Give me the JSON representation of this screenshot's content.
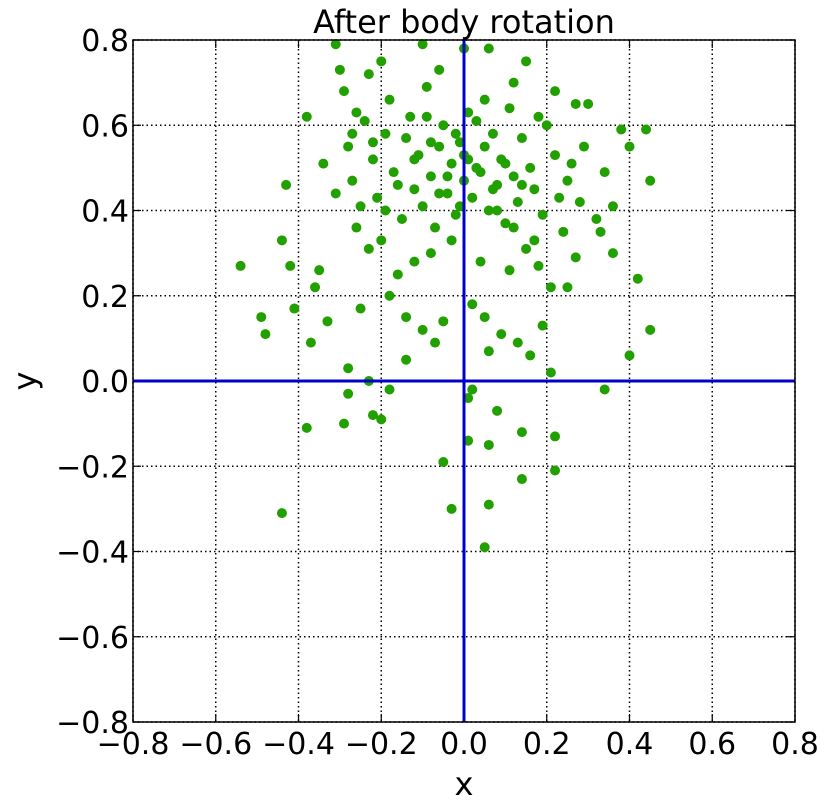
{
  "chart_data": {
    "type": "scatter",
    "title": "After body rotation",
    "xlabel": "x",
    "ylabel": "y",
    "xlim": [
      -0.8,
      0.8
    ],
    "ylim": [
      -0.8,
      0.8
    ],
    "xticks": [
      -0.8,
      -0.6,
      -0.4,
      -0.2,
      0.0,
      0.2,
      0.4,
      0.6,
      0.8
    ],
    "yticks": [
      -0.8,
      -0.6,
      -0.4,
      -0.2,
      0.0,
      0.2,
      0.4,
      0.6,
      0.8
    ],
    "xtick_labels": [
      "−0.8",
      "−0.6",
      "−0.4",
      "−0.2",
      "0.0",
      "0.2",
      "0.4",
      "0.6",
      "0.8"
    ],
    "ytick_labels": [
      "−0.8",
      "−0.6",
      "−0.4",
      "−0.2",
      "0.0",
      "0.2",
      "0.4",
      "0.6",
      "0.8"
    ],
    "grid": true,
    "grid_style": "dotted",
    "point_color": "#22a000",
    "axis_line_color": "#0000cc",
    "reference_lines": {
      "x": 0.0,
      "y": 0.0
    },
    "series": [
      {
        "points": [
          [
            -0.54,
            0.27
          ],
          [
            -0.49,
            0.15
          ],
          [
            -0.48,
            0.11
          ],
          [
            -0.43,
            0.46
          ],
          [
            -0.44,
            0.33
          ],
          [
            -0.42,
            0.27
          ],
          [
            -0.41,
            0.17
          ],
          [
            -0.38,
            0.62
          ],
          [
            -0.37,
            0.09
          ],
          [
            -0.36,
            0.22
          ],
          [
            -0.35,
            0.26
          ],
          [
            -0.33,
            0.14
          ],
          [
            -0.31,
            0.79
          ],
          [
            -0.3,
            0.73
          ],
          [
            -0.29,
            0.68
          ],
          [
            -0.28,
            0.55
          ],
          [
            -0.27,
            0.47
          ],
          [
            -0.26,
            0.36
          ],
          [
            -0.25,
            0.41
          ],
          [
            -0.24,
            0.61
          ],
          [
            -0.23,
            0.72
          ],
          [
            -0.22,
            0.52
          ],
          [
            -0.21,
            0.43
          ],
          [
            -0.2,
            0.33
          ],
          [
            -0.19,
            0.58
          ],
          [
            -0.18,
            0.66
          ],
          [
            -0.17,
            0.49
          ],
          [
            -0.16,
            0.25
          ],
          [
            -0.15,
            0.38
          ],
          [
            -0.14,
            0.57
          ],
          [
            -0.13,
            0.62
          ],
          [
            -0.12,
            0.45
          ],
          [
            -0.11,
            0.53
          ],
          [
            -0.1,
            0.41
          ],
          [
            -0.09,
            0.69
          ],
          [
            -0.08,
            0.48
          ],
          [
            -0.07,
            0.36
          ],
          [
            -0.06,
            0.55
          ],
          [
            -0.05,
            0.6
          ],
          [
            -0.04,
            0.44
          ],
          [
            -0.03,
            0.51
          ],
          [
            -0.02,
            0.39
          ],
          [
            -0.01,
            0.56
          ],
          [
            0.0,
            0.47
          ],
          [
            0.01,
            0.52
          ],
          [
            0.02,
            0.43
          ],
          [
            0.03,
            0.61
          ],
          [
            0.04,
            0.49
          ],
          [
            0.05,
            0.55
          ],
          [
            0.06,
            0.4
          ],
          [
            0.07,
            0.58
          ],
          [
            0.08,
            0.46
          ],
          [
            0.09,
            0.52
          ],
          [
            0.1,
            0.37
          ],
          [
            0.11,
            0.64
          ],
          [
            0.12,
            0.48
          ],
          [
            0.13,
            0.42
          ],
          [
            0.14,
            0.57
          ],
          [
            0.15,
            0.31
          ],
          [
            0.16,
            0.5
          ],
          [
            0.17,
            0.45
          ],
          [
            0.18,
            0.27
          ],
          [
            0.19,
            0.39
          ],
          [
            0.2,
            0.6
          ],
          [
            0.21,
            0.22
          ],
          [
            0.22,
            0.53
          ],
          [
            0.24,
            0.35
          ],
          [
            0.25,
            0.47
          ],
          [
            0.27,
            0.29
          ],
          [
            0.28,
            0.42
          ],
          [
            0.3,
            0.65
          ],
          [
            0.32,
            0.38
          ],
          [
            0.34,
            0.49
          ],
          [
            0.36,
            0.41
          ],
          [
            0.38,
            0.59
          ],
          [
            0.4,
            0.55
          ],
          [
            0.42,
            0.24
          ],
          [
            0.44,
            0.59
          ],
          [
            0.45,
            0.47
          ],
          [
            0.45,
            0.12
          ],
          [
            -0.2,
            0.75
          ],
          [
            -0.1,
            0.79
          ],
          [
            0.06,
            0.78
          ],
          [
            0.15,
            0.75
          ],
          [
            0.0,
            0.78
          ],
          [
            -0.06,
            0.73
          ],
          [
            0.12,
            0.7
          ],
          [
            0.22,
            0.68
          ],
          [
            0.27,
            0.65
          ],
          [
            -0.26,
            0.63
          ],
          [
            -0.34,
            0.51
          ],
          [
            -0.31,
            0.44
          ],
          [
            0.33,
            0.35
          ],
          [
            0.36,
            0.3
          ],
          [
            0.25,
            0.22
          ],
          [
            -0.18,
            0.2
          ],
          [
            -0.14,
            0.15
          ],
          [
            -0.1,
            0.12
          ],
          [
            -0.05,
            0.14
          ],
          [
            0.02,
            0.18
          ],
          [
            0.05,
            0.15
          ],
          [
            0.09,
            0.11
          ],
          [
            0.13,
            0.09
          ],
          [
            0.19,
            0.13
          ],
          [
            -0.25,
            0.17
          ],
          [
            -0.28,
            0.03
          ],
          [
            -0.23,
            0.0
          ],
          [
            -0.14,
            0.05
          ],
          [
            -0.07,
            0.09
          ],
          [
            0.06,
            0.07
          ],
          [
            0.16,
            0.06
          ],
          [
            0.21,
            0.02
          ],
          [
            0.4,
            0.06
          ],
          [
            0.34,
            -0.02
          ],
          [
            -0.38,
            -0.11
          ],
          [
            -0.29,
            -0.1
          ],
          [
            -0.22,
            -0.08
          ],
          [
            -0.2,
            -0.09
          ],
          [
            -0.18,
            -0.02
          ],
          [
            -0.05,
            -0.19
          ],
          [
            0.01,
            -0.04
          ],
          [
            0.02,
            -0.02
          ],
          [
            0.01,
            -0.14
          ],
          [
            0.06,
            -0.15
          ],
          [
            0.08,
            -0.07
          ],
          [
            0.14,
            -0.12
          ],
          [
            0.22,
            -0.13
          ],
          [
            0.22,
            -0.21
          ],
          [
            0.14,
            -0.23
          ],
          [
            0.06,
            -0.29
          ],
          [
            -0.03,
            -0.3
          ],
          [
            0.05,
            -0.39
          ],
          [
            -0.44,
            -0.31
          ],
          [
            -0.28,
            -0.03
          ],
          [
            -0.08,
            0.3
          ],
          [
            -0.03,
            0.33
          ],
          [
            0.04,
            0.28
          ],
          [
            0.11,
            0.26
          ],
          [
            -0.12,
            0.28
          ],
          [
            0.17,
            0.33
          ],
          [
            -0.16,
            0.46
          ],
          [
            -0.12,
            0.52
          ],
          [
            -0.08,
            0.56
          ],
          [
            -0.04,
            0.48
          ],
          [
            0.0,
            0.53
          ],
          [
            0.03,
            0.5
          ],
          [
            0.07,
            0.45
          ],
          [
            0.1,
            0.51
          ],
          [
            0.14,
            0.46
          ],
          [
            -0.02,
            0.58
          ],
          [
            0.01,
            0.63
          ],
          [
            0.05,
            0.66
          ],
          [
            -0.09,
            0.62
          ],
          [
            0.18,
            0.62
          ],
          [
            -0.22,
            0.56
          ],
          [
            -0.27,
            0.58
          ],
          [
            0.08,
            0.4
          ],
          [
            0.12,
            0.36
          ],
          [
            -0.01,
            0.41
          ],
          [
            -0.06,
            0.44
          ],
          [
            0.23,
            0.43
          ],
          [
            0.26,
            0.51
          ],
          [
            0.29,
            0.55
          ],
          [
            -0.19,
            0.4
          ],
          [
            -0.23,
            0.31
          ]
        ]
      }
    ]
  }
}
